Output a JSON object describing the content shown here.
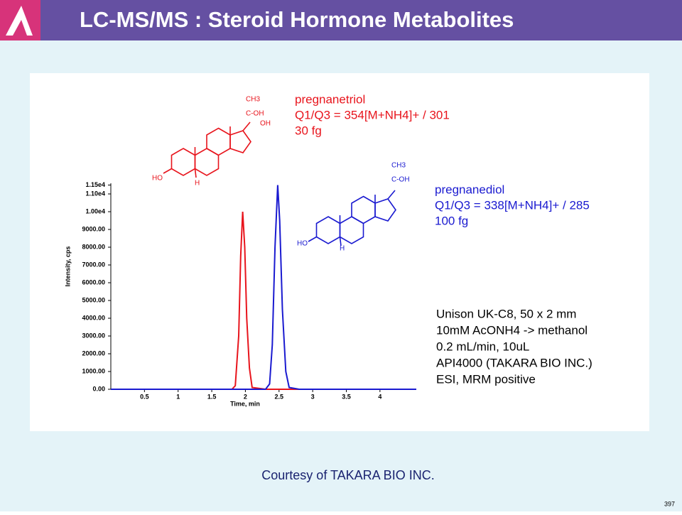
{
  "header": {
    "title": "LC-MS/MS : Steroid Hormone Metabolites"
  },
  "chart_data": {
    "type": "line",
    "xlabel": "Time, min",
    "ylabel": "Intensity, cps",
    "x": [
      0,
      0.5,
      1.0,
      1.5,
      1.8,
      1.85,
      1.9,
      1.93,
      1.96,
      1.99,
      2.02,
      2.06,
      2.1,
      2.3,
      2.36,
      2.4,
      2.44,
      2.48,
      2.51,
      2.55,
      2.6,
      2.65,
      2.8,
      3.0,
      3.5,
      4.0,
      4.54
    ],
    "series": [
      {
        "name": "pregnanetriol",
        "color": "#e8141c",
        "details": [
          "Q1/Q3 = 354[M+NH4]+ / 301",
          "30 fg"
        ],
        "values": [
          0,
          0,
          0,
          0,
          0,
          200,
          3000,
          7500,
          10000,
          8000,
          4000,
          1200,
          100,
          0,
          0,
          0,
          0,
          0,
          0,
          0,
          0,
          0,
          0,
          0,
          0,
          0,
          0
        ]
      },
      {
        "name": "pregnanediol",
        "color": "#1a1ad0",
        "details": [
          "Q1/Q3 = 338[M+NH4]+ / 285",
          "100 fg"
        ],
        "values": [
          0,
          0,
          0,
          0,
          0,
          0,
          0,
          0,
          0,
          0,
          0,
          0,
          0,
          0,
          300,
          2500,
          8000,
          11500,
          9500,
          4500,
          1000,
          100,
          0,
          0,
          0,
          0,
          0
        ]
      }
    ],
    "xlim": [
      0,
      4.54
    ],
    "xticks": [
      0.5,
      1.0,
      1.5,
      2.0,
      2.5,
      3.0,
      3.5,
      4.0
    ],
    "ylim": [
      0,
      11600
    ],
    "yticks": [
      {
        "value": 0,
        "label": "0.00"
      },
      {
        "value": 1000,
        "label": "1000.00"
      },
      {
        "value": 2000,
        "label": "2000.00"
      },
      {
        "value": 3000,
        "label": "3000.00"
      },
      {
        "value": 4000,
        "label": "4000.00"
      },
      {
        "value": 5000,
        "label": "5000.00"
      },
      {
        "value": 6000,
        "label": "6000.00"
      },
      {
        "value": 7000,
        "label": "7000.00"
      },
      {
        "value": 8000,
        "label": "8000.00"
      },
      {
        "value": 9000,
        "label": "9000.00"
      },
      {
        "value": 10000,
        "label": "1.00e4"
      },
      {
        "value": 11000,
        "label": "1.10e4"
      },
      {
        "value": 11500,
        "label": "1.15e4"
      }
    ],
    "conditions": [
      "Unison UK-C8, 50 x 2 mm",
      "10mM AcONH4 -> methanol",
      "0.2 mL/min, 10uL",
      "API4000 (TAKARA BIO INC.)",
      "ESI, MRM positive"
    ]
  },
  "structures": [
    {
      "labels": [
        "CH3",
        "C-OH",
        "OH",
        "HO",
        "H"
      ]
    },
    {
      "labels": [
        "CH3",
        "C-OH",
        "HO",
        "H"
      ]
    }
  ],
  "footer": {
    "credit": "Courtesy of TAKARA BIO INC.",
    "page": "397"
  }
}
